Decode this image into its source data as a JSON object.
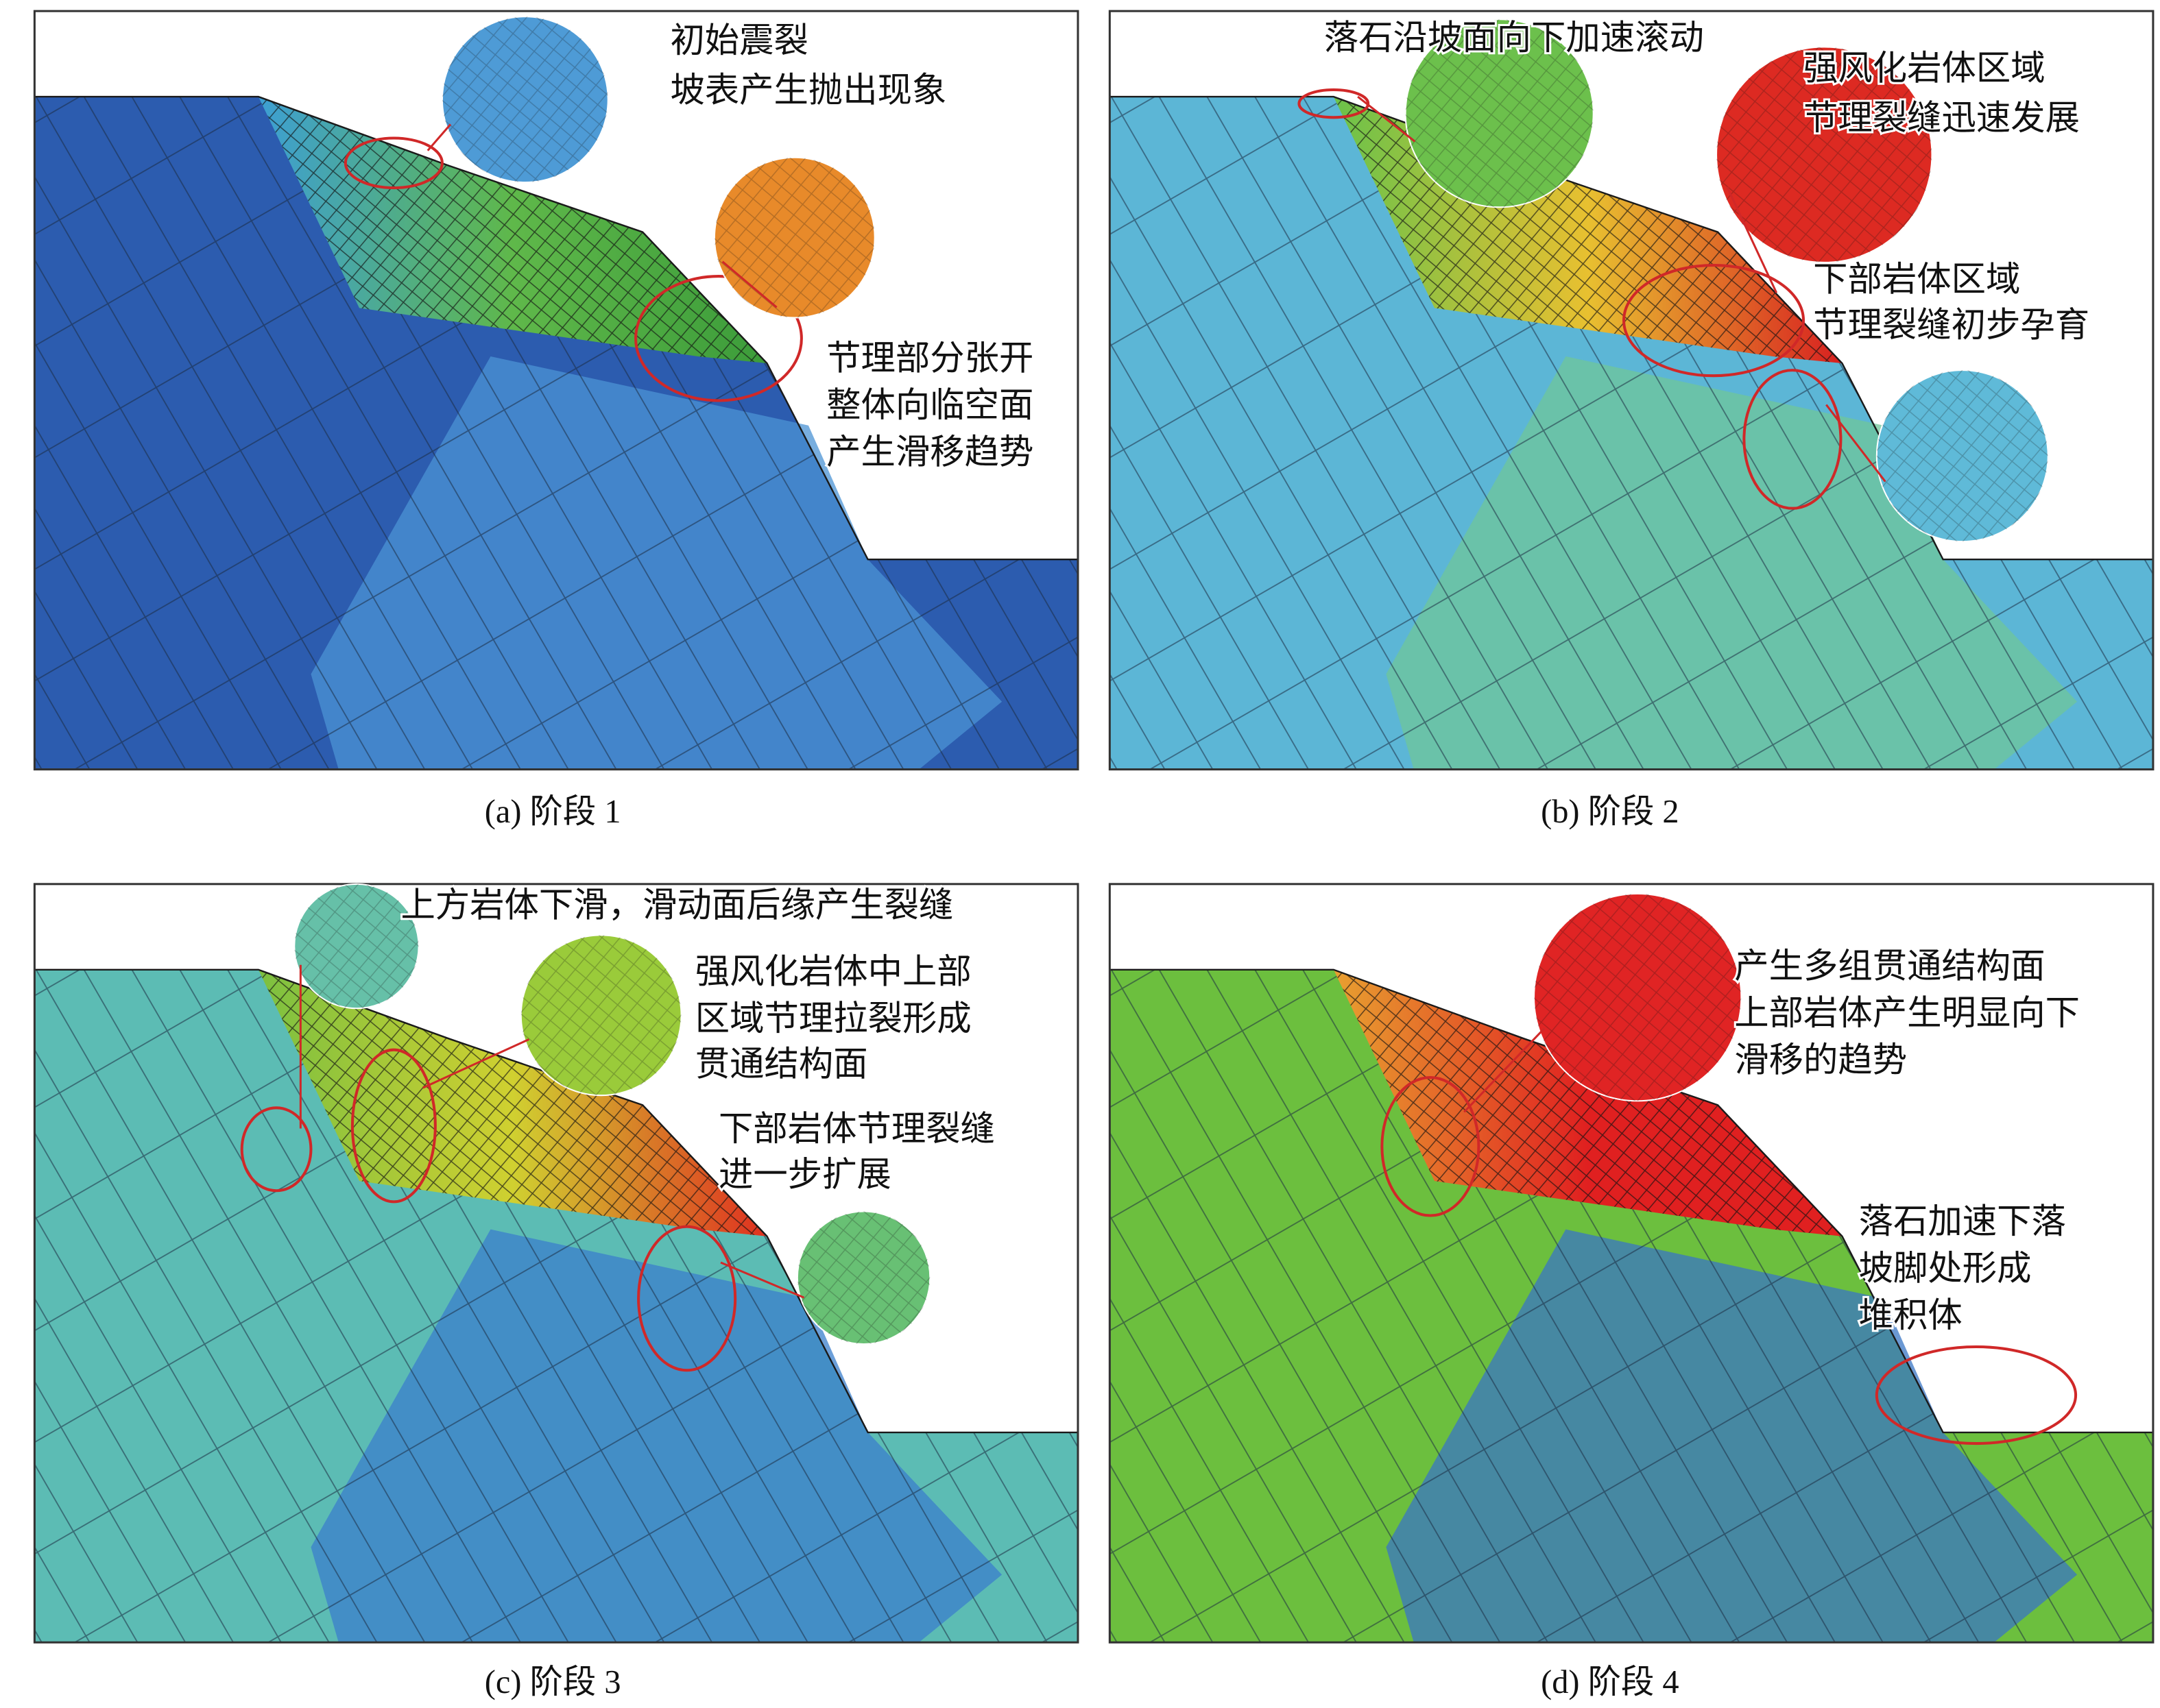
{
  "figure": {
    "panels": [
      {
        "caption": "(a) 阶段 1",
        "annotations": [
          "初始震裂",
          "坡表产生抛出现象",
          "节理部分张开",
          "整体向临空面",
          "产生滑移趋势"
        ]
      },
      {
        "caption": "(b) 阶段 2",
        "annotations": [
          "落石沿坡面向下加速滚动",
          "强风化岩体区域",
          "节理裂缝迅速发展",
          "下部岩体区域",
          "节理裂缝初步孕育"
        ]
      },
      {
        "caption": "(c) 阶段 3",
        "annotations": [
          "上方岩体下滑，滑动面后缘产生裂缝",
          "强风化岩体中上部",
          "区域节理拉裂形成",
          "贯通结构面",
          "下部岩体节理裂缝",
          "进一步扩展"
        ]
      },
      {
        "caption": "(d) 阶段 4",
        "annotations": [
          "产生多组贯通结构面",
          "上部岩体产生明显向下",
          "滑移的趋势",
          "落石加速下落",
          "坡脚处形成",
          "堆积体"
        ]
      }
    ]
  }
}
